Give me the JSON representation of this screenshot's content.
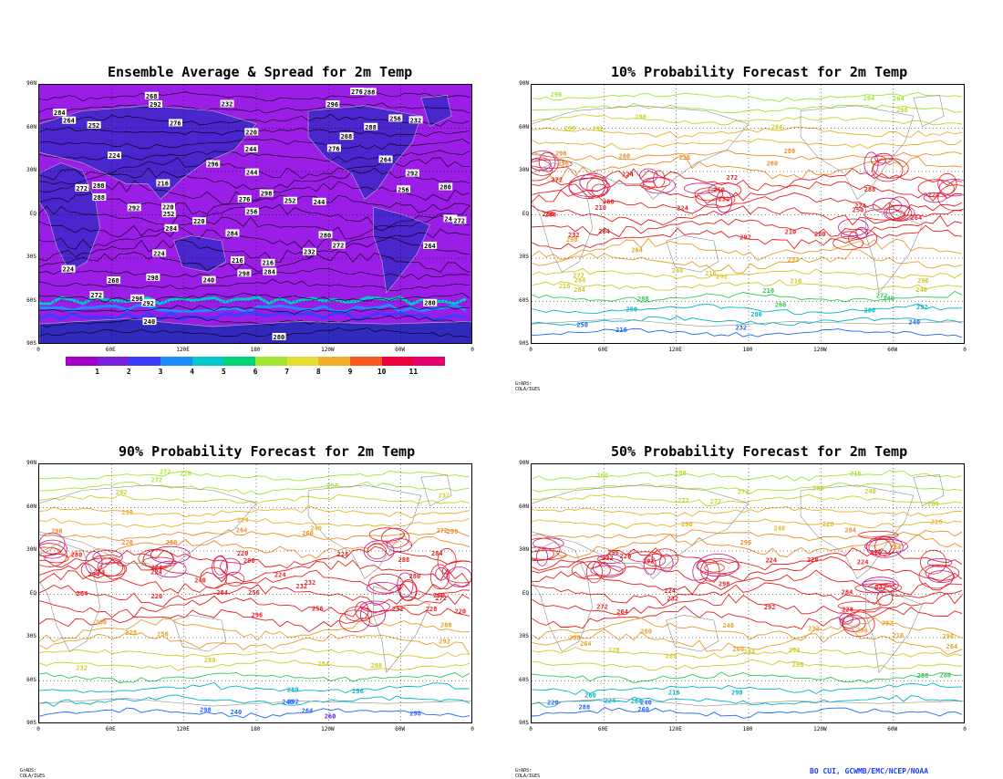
{
  "footer": {
    "credit": "BO CUI, GCWMB/EMC/NCEP/NOAA",
    "grads_credit": "GrADS: COLA/IGES"
  },
  "axis": {
    "lat_labels": [
      "90N",
      "60N",
      "30N",
      "EQ",
      "30S",
      "60S",
      "90S"
    ],
    "lon_labels": [
      "0",
      "60E",
      "120E",
      "180",
      "120W",
      "60W",
      "0"
    ]
  },
  "colorbar": {
    "labels": [
      "1",
      "2",
      "3",
      "4",
      "5",
      "6",
      "7",
      "8",
      "9",
      "10",
      "11"
    ],
    "colors": [
      "#a000c8",
      "#7a20e0",
      "#3c3cff",
      "#1e8cff",
      "#00c8c8",
      "#00d278",
      "#a0e632",
      "#e6dc32",
      "#f0af2d",
      "#fa5a1e",
      "#f0003c",
      "#e6006e"
    ]
  },
  "chart_data": [
    {
      "type": "contour-map",
      "title": "Ensemble Average & Spread for 2m Temp",
      "background_fill": "#9a1ee6",
      "contour_labels": [
        "272",
        "276",
        "280",
        "284",
        "288",
        "292",
        "296",
        "298",
        "240",
        "232",
        "224",
        "220",
        "216",
        "244",
        "252",
        "256",
        "264",
        "268"
      ],
      "grid": true
    },
    {
      "type": "contour-map",
      "title": "10% Probability Forecast for 2m Temp",
      "contour_labels": [
        "250",
        "264",
        "272",
        "280",
        "284",
        "288",
        "292",
        "296",
        "298",
        "240",
        "232",
        "224",
        "216",
        "210",
        "260"
      ],
      "grid": true,
      "credit": "GrADS: COLA/IGES"
    },
    {
      "type": "contour-map",
      "title": "90% Probability Forecast for 2m Temp",
      "contour_labels": [
        "272",
        "280",
        "284",
        "288",
        "292",
        "296",
        "298",
        "264",
        "256",
        "240",
        "232",
        "224",
        "228",
        "220",
        "260"
      ],
      "grid": true,
      "credit": "GrADS: COLA/IGES"
    },
    {
      "type": "contour-map",
      "title": "50% Probability Forecast for 2m Temp",
      "contour_labels": [
        "272",
        "280",
        "284",
        "288",
        "292",
        "296",
        "298",
        "264",
        "260",
        "240",
        "232",
        "224",
        "220",
        "216",
        "228"
      ],
      "grid": true,
      "credit": "GrADS: COLA/IGES"
    }
  ]
}
